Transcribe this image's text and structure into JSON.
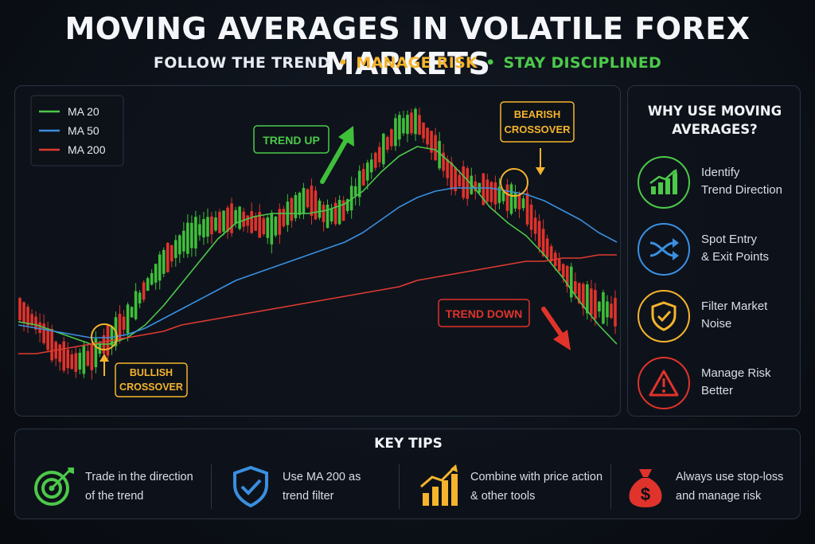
{
  "title": "MOVING AVERAGES IN VOLATILE FOREX MARKETS",
  "subtitle": {
    "part1": "FOLLOW THE TREND",
    "part2": "MANAGE RISK",
    "part3": "STAY DISCIPLINED",
    "separator": "•",
    "colors": {
      "part1": "#e8ecf2",
      "part2": "#f5b42c",
      "part3": "#4cc94a"
    }
  },
  "chart_data": {
    "type": "line",
    "title": "",
    "xlabel": "",
    "ylabel": "",
    "grid": false,
    "legend_position": "top-left",
    "series": [
      {
        "name": "MA 20",
        "color": "#4cc94a",
        "values": [
          41,
          40,
          38,
          36,
          34,
          34,
          36,
          40,
          46,
          53,
          60,
          67,
          72,
          74,
          75,
          75,
          75,
          76,
          78,
          82,
          88,
          93,
          96,
          95,
          90,
          84,
          77,
          72,
          68,
          62,
          55,
          47,
          40,
          34
        ]
      },
      {
        "name": "MA 50",
        "color": "#3a8fe0",
        "values": [
          40,
          39,
          38,
          37,
          36,
          36,
          37,
          39,
          42,
          45,
          48,
          51,
          54,
          56,
          58,
          60,
          62,
          64,
          66,
          69,
          73,
          77,
          80,
          82,
          83,
          83,
          83,
          82,
          81,
          79,
          76,
          73,
          69,
          66
        ]
      },
      {
        "name": "MA 200",
        "color": "#e03a30",
        "values": [
          31,
          31,
          32,
          33,
          34,
          35,
          36,
          37,
          38,
          40,
          41,
          42,
          43,
          44,
          45,
          46,
          47,
          48,
          49,
          50,
          51,
          52,
          54,
          55,
          56,
          57,
          58,
          59,
          60,
          60,
          61,
          61,
          62,
          62
        ]
      },
      {
        "name": "Price",
        "color": "#cccccc",
        "values": [
          45,
          40,
          32,
          28,
          30,
          36,
          42,
          52,
          60,
          66,
          70,
          72,
          74,
          72,
          70,
          76,
          80,
          74,
          76,
          86,
          94,
          102,
          104,
          96,
          86,
          84,
          82,
          80,
          78,
          66,
          58,
          50,
          46,
          44
        ]
      }
    ],
    "candle_up_color": "#3fbf3a",
    "candle_down_color": "#e0332b",
    "ylim": [
      20,
      110
    ],
    "annotations": [
      {
        "text": "TREND UP",
        "color": "#4cc94a"
      },
      {
        "text": "TREND DOWN",
        "color": "#e0332b"
      },
      {
        "text": "BEARISH CROSSOVER",
        "color": "#f5b42c"
      },
      {
        "text": "BULLISH CROSSOVER",
        "color": "#f5b42c"
      }
    ]
  },
  "chart_labels": {
    "trend_up": "TREND UP",
    "trend_down": "TREND DOWN",
    "bearish_1": "BEARISH",
    "bearish_2": "CROSSOVER",
    "bullish_1": "BULLISH",
    "bullish_2": "CROSSOVER"
  },
  "side_panel": {
    "title_line1": "WHY USE MOVING",
    "title_line2": "AVERAGES?",
    "items": [
      {
        "line1": "Identify",
        "line2": "Trend Direction",
        "icon": "bar-chart-up-icon",
        "color": "#4cc94a"
      },
      {
        "line1": "Spot Entry",
        "line2": "& Exit Points",
        "icon": "shuffle-arrows-icon",
        "color": "#3a8fe0"
      },
      {
        "line1": "Filter Market",
        "line2": "Noise",
        "icon": "shield-check-icon",
        "color": "#f5b42c"
      },
      {
        "line1": "Manage Risk",
        "line2": "Better",
        "icon": "warning-triangle-icon",
        "color": "#e0332b"
      }
    ]
  },
  "tips": {
    "title": "KEY TIPS",
    "items": [
      {
        "line1": "Trade in the direction",
        "line2": "of the trend",
        "icon": "target-arrow-icon",
        "color": "#4cc94a"
      },
      {
        "line1": "Use MA 200 as",
        "line2": "trend filter",
        "icon": "shield-check-icon",
        "color": "#3a8fe0"
      },
      {
        "line1": "Combine with price action",
        "line2": "& other tools",
        "icon": "bar-chart-up-icon",
        "color": "#f5b42c"
      },
      {
        "line1": "Always use stop-loss",
        "line2": "and manage risk",
        "icon": "money-bag-icon",
        "color": "#e0332b"
      }
    ]
  }
}
